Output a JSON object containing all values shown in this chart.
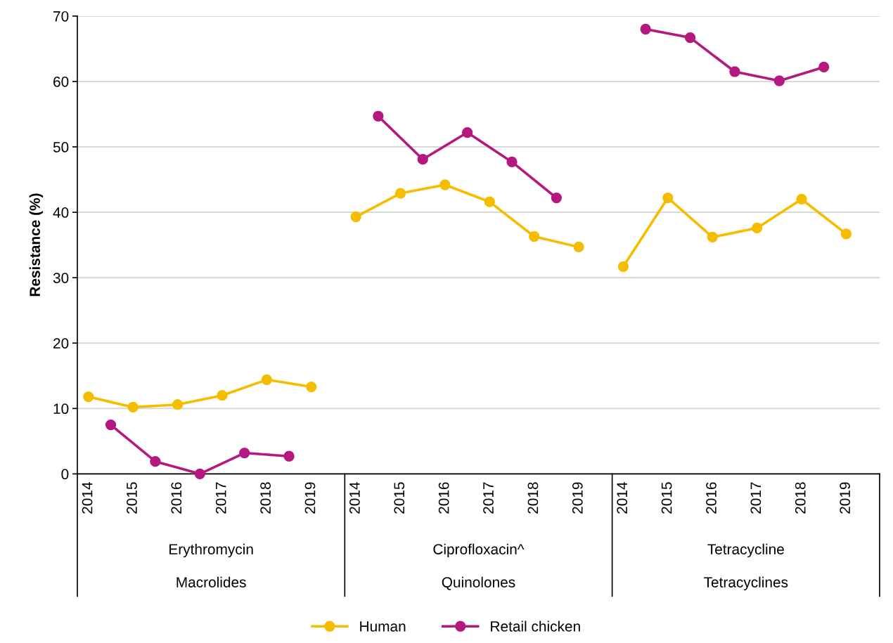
{
  "chart_data": {
    "type": "line",
    "ylabel": "Resistance (%)",
    "categories": [
      "2014",
      null,
      "2015",
      null,
      "2016",
      null,
      "2017",
      null,
      "2018",
      null,
      "2019",
      null,
      "2014",
      null,
      "2015",
      null,
      "2016",
      null,
      "2017",
      null,
      "2018",
      null,
      "2019",
      null,
      "2014",
      null,
      "2015",
      null,
      "2016",
      null,
      "2017",
      null,
      "2018",
      null,
      "2019",
      null
    ],
    "series": [
      {
        "name": "Human",
        "color": "#f5bd00",
        "values": [
          11.8,
          null,
          10.2,
          null,
          10.6,
          null,
          12.0,
          null,
          14.4,
          null,
          13.3,
          null,
          39.3,
          null,
          42.9,
          null,
          44.2,
          null,
          41.6,
          null,
          36.3,
          null,
          34.7,
          null,
          31.7,
          null,
          42.2,
          null,
          36.2,
          null,
          37.6,
          null,
          42.0,
          null,
          36.7,
          null
        ]
      },
      {
        "name": "Retail chicken",
        "color": "#b5187f",
        "values": [
          null,
          7.5,
          null,
          1.9,
          null,
          0,
          null,
          3.2,
          null,
          2.7,
          null,
          null,
          null,
          54.7,
          null,
          48.1,
          null,
          52.2,
          null,
          47.7,
          null,
          42.2,
          null,
          null,
          null,
          68.0,
          null,
          66.7,
          null,
          61.5,
          null,
          60.1,
          null,
          62.2,
          null,
          null
        ]
      }
    ],
    "annotations": [
      "Erythromycin",
      "Ciprofloxacin^",
      "Tetracycline",
      "Macrolides",
      "Quinolones",
      "Tetracyclines"
    ],
    "ylim": [
      0,
      70
    ],
    "yticks": [
      0,
      10,
      20,
      30,
      40,
      50,
      60,
      70
    ],
    "grid": "y",
    "legend": "bottom",
    "marker": "circle",
    "line_style": "solid"
  }
}
